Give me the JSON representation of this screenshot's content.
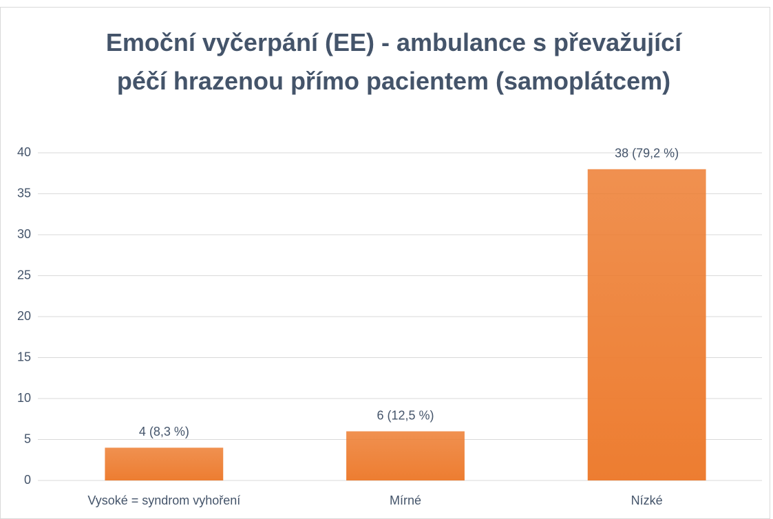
{
  "chart_data": {
    "type": "bar",
    "title": "Emoční vyčerpání (EE) - ambulance s převažující péčí hrazenou přímo pacientem (samoplátcem)",
    "categories": [
      "Vysoké = syndrom vyhoření",
      "Mírné",
      "Nízké"
    ],
    "values": [
      4,
      6,
      38
    ],
    "value_labels": [
      "4 (8,3 %)",
      "6 (12,5 %)",
      "38 (79,2 %)"
    ],
    "color": "#ed7d31",
    "ylim": [
      0,
      40
    ],
    "yticks": [
      0,
      5,
      10,
      15,
      20,
      25,
      30,
      35,
      40
    ],
    "grid": true
  }
}
